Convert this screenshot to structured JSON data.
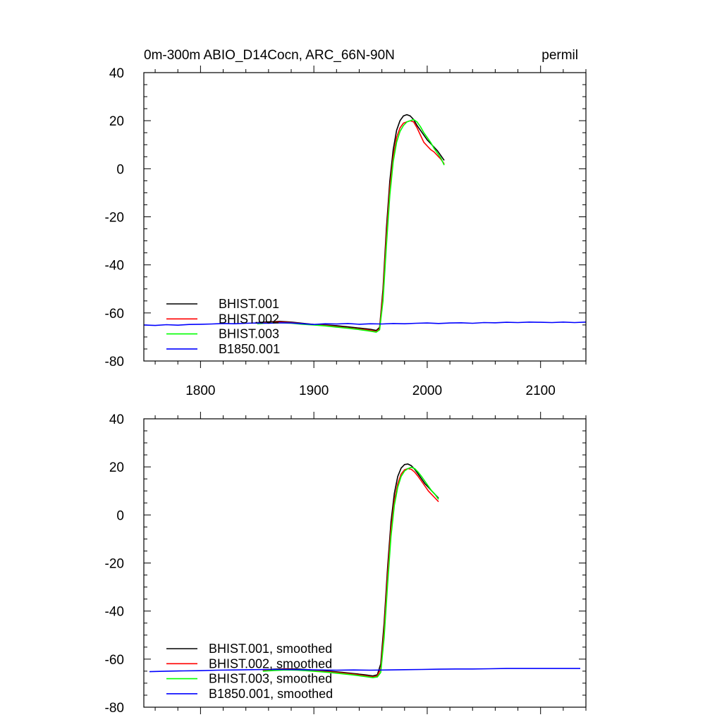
{
  "colors": {
    "BHIST.001": "#000000",
    "BHIST.002": "#ff0000",
    "BHIST.003": "#00ff00",
    "B1850.001": "#0000ff"
  },
  "chart_data": [
    {
      "type": "line",
      "title_left": "0m-300m ABIO_D14Cocn, ARC_66N-90N",
      "title_right": "permil",
      "xlim": [
        1750,
        2140
      ],
      "ylim": [
        -80,
        40
      ],
      "xticks": [
        1800,
        1900,
        2000,
        2100
      ],
      "xtick_labels": [
        "1800",
        "1900",
        "2000",
        "2100"
      ],
      "yticks": [
        -80,
        -60,
        -40,
        -20,
        0,
        20,
        40
      ],
      "ytick_labels": [
        "-80",
        "-60",
        "-40",
        "-20",
        "0",
        "20",
        "40"
      ],
      "grid": false,
      "legend": "bottom-left",
      "series": [
        {
          "name": "BHIST.001",
          "x": [
            1850,
            1860,
            1870,
            1880,
            1890,
            1900,
            1910,
            1920,
            1930,
            1940,
            1950,
            1955,
            1958,
            1961,
            1964,
            1967,
            1970,
            1973,
            1976,
            1979,
            1982,
            1985,
            1988,
            1991,
            1994,
            1997,
            2000,
            2003,
            2006,
            2009,
            2012,
            2015
          ],
          "y": [
            -64.0,
            -63.7,
            -63.5,
            -63.8,
            -64.3,
            -64.8,
            -65.0,
            -65.3,
            -65.8,
            -66.3,
            -66.8,
            -67.3,
            -66.0,
            -50,
            -25,
            -5,
            8,
            16,
            20,
            22,
            22.5,
            22,
            20.5,
            18,
            16,
            14,
            12,
            10.5,
            9,
            7.5,
            5.5,
            3.5
          ]
        },
        {
          "name": "BHIST.002",
          "x": [
            1850,
            1860,
            1870,
            1880,
            1890,
            1900,
            1910,
            1920,
            1930,
            1940,
            1950,
            1955,
            1958,
            1961,
            1964,
            1967,
            1970,
            1973,
            1976,
            1979,
            1982,
            1985,
            1988,
            1991,
            1994,
            1997,
            2000,
            2003,
            2006,
            2009,
            2012,
            2015
          ],
          "y": [
            -64.2,
            -64.0,
            -63.8,
            -64.0,
            -64.5,
            -64.9,
            -65.2,
            -65.7,
            -66.2,
            -66.7,
            -67.2,
            -67.8,
            -66.5,
            -52,
            -28,
            -8,
            5,
            13,
            17,
            19,
            19.5,
            20,
            19.5,
            17,
            14,
            11,
            9.5,
            8,
            7,
            5.5,
            4,
            2
          ]
        },
        {
          "name": "BHIST.003",
          "x": [
            1850,
            1860,
            1870,
            1880,
            1890,
            1900,
            1910,
            1920,
            1930,
            1940,
            1950,
            1955,
            1958,
            1961,
            1964,
            1967,
            1970,
            1973,
            1976,
            1979,
            1982,
            1985,
            1988,
            1991,
            1994,
            1997,
            2000,
            2003,
            2006,
            2009,
            2012,
            2015
          ],
          "y": [
            -64.5,
            -64.2,
            -64.1,
            -64.3,
            -64.7,
            -65.0,
            -65.4,
            -65.9,
            -66.4,
            -66.9,
            -67.6,
            -68.0,
            -67.0,
            -55,
            -32,
            -11,
            3,
            11,
            15.5,
            18,
            19.5,
            20,
            20.5,
            19.5,
            17.5,
            15,
            13,
            11,
            8.5,
            6.5,
            4.5,
            1.5
          ]
        },
        {
          "name": "B1850.001",
          "x": [
            1750,
            1760,
            1770,
            1780,
            1790,
            1800,
            1810,
            1820,
            1830,
            1840,
            1850,
            1860,
            1870,
            1880,
            1890,
            1900,
            1910,
            1920,
            1930,
            1940,
            1950,
            1960,
            1970,
            1980,
            1990,
            2000,
            2010,
            2020,
            2030,
            2040,
            2050,
            2060,
            2070,
            2080,
            2090,
            2100,
            2110,
            2120,
            2130,
            2140
          ],
          "y": [
            -65.0,
            -65.2,
            -64.9,
            -65.1,
            -64.8,
            -64.7,
            -64.6,
            -64.4,
            -64.5,
            -64.3,
            -64.2,
            -64.3,
            -64.1,
            -64.2,
            -64.5,
            -64.8,
            -64.5,
            -64.6,
            -64.4,
            -64.7,
            -64.5,
            -64.6,
            -64.4,
            -64.5,
            -64.3,
            -64.2,
            -64.4,
            -64.2,
            -64.1,
            -64.3,
            -64.0,
            -64.1,
            -63.9,
            -64.0,
            -63.8,
            -63.9,
            -64.0,
            -63.8,
            -64.0,
            -63.8
          ]
        }
      ]
    },
    {
      "type": "line",
      "title_left": "",
      "title_right": "",
      "xlim": [
        1750,
        2140
      ],
      "ylim": [
        -80,
        40
      ],
      "xticks": [
        1800,
        1900,
        2000,
        2100
      ],
      "xtick_labels": [],
      "yticks": [
        -80,
        -60,
        -40,
        -20,
        0,
        20,
        40
      ],
      "ytick_labels": [
        "-80",
        "-60",
        "-40",
        "-20",
        "0",
        "20",
        "40"
      ],
      "grid": false,
      "legend": "bottom-left",
      "series": [
        {
          "name": "BHIST.001, smoothed",
          "x": [
            1855,
            1865,
            1875,
            1885,
            1895,
            1905,
            1915,
            1925,
            1935,
            1945,
            1952,
            1956,
            1959,
            1962,
            1965,
            1968,
            1971,
            1974,
            1977,
            1980,
            1983,
            1986,
            1989,
            1992,
            1995,
            1998,
            2001,
            2004,
            2007,
            2010
          ],
          "y": [
            -64.5,
            -64.2,
            -64.0,
            -64.1,
            -64.4,
            -64.8,
            -65.1,
            -65.5,
            -66.0,
            -66.5,
            -67.0,
            -66.5,
            -62,
            -45,
            -22,
            -3,
            9,
            16,
            19.5,
            21,
            21.2,
            20.5,
            19,
            17,
            15,
            13,
            11.5,
            10,
            8.5,
            7
          ]
        },
        {
          "name": "BHIST.002, smoothed",
          "x": [
            1855,
            1865,
            1875,
            1885,
            1895,
            1905,
            1915,
            1925,
            1935,
            1945,
            1952,
            1956,
            1959,
            1962,
            1965,
            1968,
            1971,
            1974,
            1977,
            1980,
            1983,
            1986,
            1989,
            1992,
            1995,
            1998,
            2001,
            2004,
            2007,
            2010
          ],
          "y": [
            -64.7,
            -64.4,
            -64.2,
            -64.4,
            -64.7,
            -65.0,
            -65.4,
            -65.8,
            -66.3,
            -66.9,
            -67.4,
            -67.0,
            -64,
            -48,
            -25,
            -6,
            6,
            13,
            17,
            18.8,
            19.3,
            19,
            17.8,
            16,
            14,
            12,
            10,
            8.5,
            7,
            5.5
          ]
        },
        {
          "name": "BHIST.003, smoothed",
          "x": [
            1855,
            1865,
            1875,
            1885,
            1895,
            1905,
            1915,
            1925,
            1935,
            1945,
            1952,
            1956,
            1959,
            1962,
            1965,
            1968,
            1971,
            1974,
            1977,
            1980,
            1983,
            1986,
            1989,
            1992,
            1995,
            1998,
            2001,
            2004,
            2007,
            2010
          ],
          "y": [
            -65.0,
            -64.7,
            -64.5,
            -64.6,
            -64.9,
            -65.2,
            -65.6,
            -66.1,
            -66.6,
            -67.2,
            -67.7,
            -67.4,
            -65.5,
            -51,
            -29,
            -9,
            4,
            11.5,
            16,
            18.3,
            19.3,
            19.8,
            19.3,
            17.8,
            16,
            14,
            12,
            10,
            8.5,
            6.5
          ]
        },
        {
          "name": "B1850.001, smoothed",
          "x": [
            1755,
            1770,
            1785,
            1800,
            1815,
            1830,
            1845,
            1860,
            1875,
            1890,
            1905,
            1920,
            1935,
            1950,
            1965,
            1980,
            1995,
            2010,
            2025,
            2040,
            2055,
            2070,
            2085,
            2100,
            2115,
            2130,
            2135
          ],
          "y": [
            -65.2,
            -65.0,
            -64.9,
            -64.8,
            -64.6,
            -64.5,
            -64.4,
            -64.3,
            -64.3,
            -64.4,
            -64.5,
            -64.6,
            -64.5,
            -64.6,
            -64.5,
            -64.4,
            -64.3,
            -64.2,
            -64.1,
            -64.1,
            -64.0,
            -63.9,
            -63.9,
            -63.9,
            -63.9,
            -63.9,
            -63.9
          ]
        }
      ]
    }
  ]
}
